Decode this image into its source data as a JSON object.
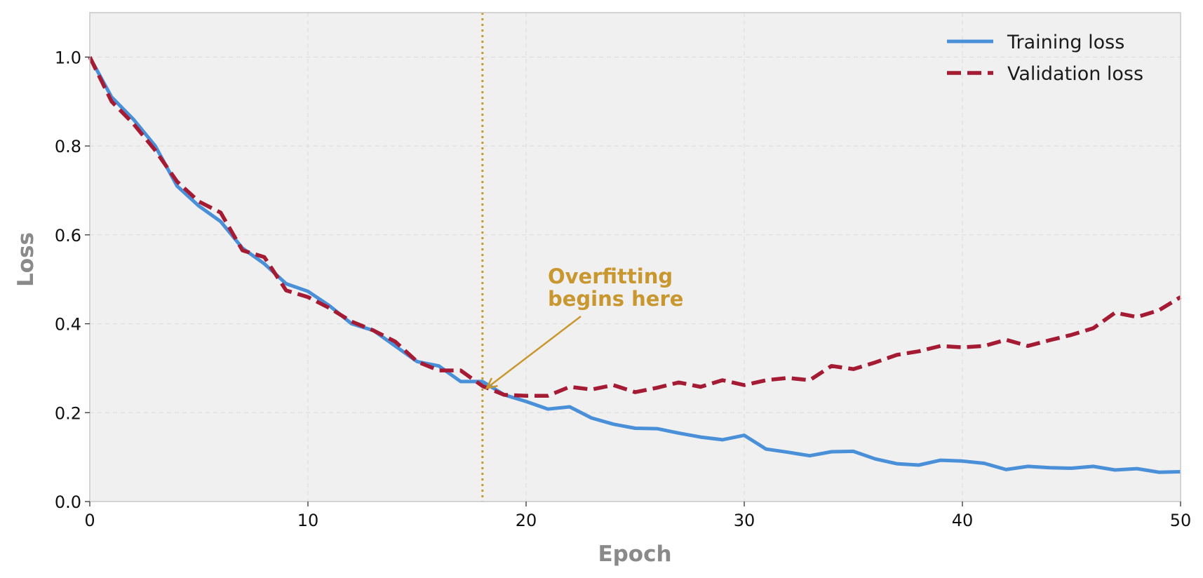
{
  "chart_data": {
    "type": "line",
    "title": "",
    "xlabel": "Epoch",
    "ylabel": "Loss",
    "xlim": [
      0,
      50
    ],
    "ylim": [
      0,
      1.1
    ],
    "xticks": [
      0,
      10,
      20,
      30,
      40,
      50
    ],
    "xtick_labels": [
      "0",
      "10",
      "20",
      "30",
      "40",
      "50"
    ],
    "yticks": [
      0.0,
      0.2,
      0.4,
      0.6,
      0.8,
      1.0
    ],
    "ytick_labels": [
      "0.0",
      "0.2",
      "0.4",
      "0.6",
      "0.8",
      "1.0"
    ],
    "grid": true,
    "legend_position": "top-right",
    "background_color": "#f0f0f0",
    "x": [
      0,
      1,
      2,
      3,
      4,
      5,
      6,
      7,
      8,
      9,
      10,
      11,
      12,
      13,
      14,
      15,
      16,
      17,
      18,
      19,
      20,
      21,
      22,
      23,
      24,
      25,
      26,
      27,
      28,
      29,
      30,
      31,
      32,
      33,
      34,
      35,
      36,
      37,
      38,
      39,
      40,
      41,
      42,
      43,
      44,
      45,
      46,
      47,
      48,
      49,
      50
    ],
    "series": [
      {
        "name": "Training loss",
        "color": "#4a90d9",
        "style": "solid",
        "values": [
          1.0,
          0.91,
          0.86,
          0.8,
          0.71,
          0.665,
          0.63,
          0.57,
          0.535,
          0.49,
          0.473,
          0.44,
          0.4,
          0.385,
          0.35,
          0.315,
          0.305,
          0.27,
          0.27,
          0.24,
          0.225,
          0.208,
          0.213,
          0.188,
          0.174,
          0.165,
          0.164,
          0.154,
          0.145,
          0.139,
          0.149,
          0.118,
          0.111,
          0.103,
          0.112,
          0.113,
          0.096,
          0.085,
          0.082,
          0.093,
          0.091,
          0.086,
          0.072,
          0.079,
          0.076,
          0.075,
          0.079,
          0.071,
          0.074,
          0.066,
          0.067
        ]
      },
      {
        "name": "Validation loss",
        "color": "#a51b34",
        "style": "dashed",
        "values": [
          1.0,
          0.9,
          0.85,
          0.79,
          0.72,
          0.675,
          0.65,
          0.565,
          0.55,
          0.475,
          0.46,
          0.435,
          0.405,
          0.385,
          0.36,
          0.315,
          0.295,
          0.295,
          0.26,
          0.24,
          0.238,
          0.238,
          0.258,
          0.252,
          0.262,
          0.246,
          0.256,
          0.268,
          0.258,
          0.273,
          0.262,
          0.273,
          0.278,
          0.273,
          0.305,
          0.298,
          0.313,
          0.33,
          0.338,
          0.35,
          0.347,
          0.35,
          0.364,
          0.35,
          0.363,
          0.375,
          0.39,
          0.425,
          0.415,
          0.43,
          0.46
        ]
      }
    ],
    "vline": {
      "x": 18,
      "color": "#c9972f",
      "style": "dotted"
    },
    "annotation": {
      "lines": [
        "Overfitting",
        "begins here"
      ],
      "color": "#c9972f",
      "points_to": {
        "x": 18,
        "y": 0.26
      }
    }
  }
}
